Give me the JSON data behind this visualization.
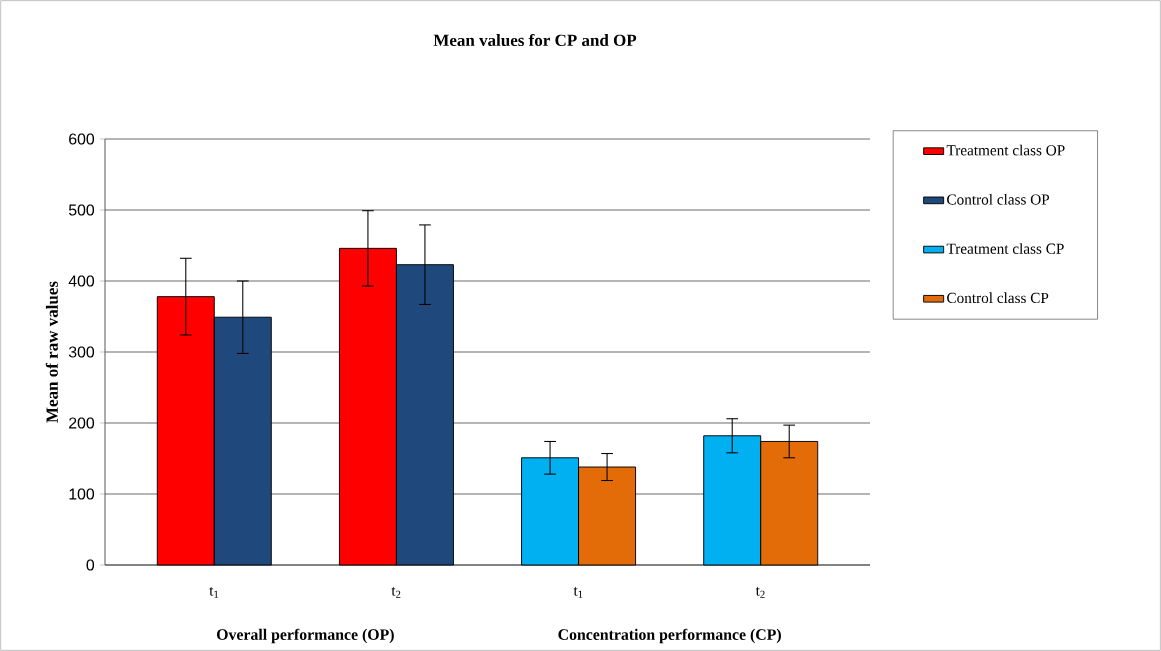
{
  "chart_data": {
    "type": "bar",
    "title": "Mean values for CP and OP",
    "ylabel": "Mean of raw values",
    "categories": [
      "t$_{1}$",
      "t$_{2}$",
      "t$_{1}$",
      "t$_{2}$"
    ],
    "series": [
      {
        "name": "Treatment class OP",
        "color": "#ff0000",
        "values": [
          378,
          446,
          null,
          null
        ],
        "errors": [
          54,
          53,
          null,
          null
        ]
      },
      {
        "name": "Control class OP",
        "color": "#1f497d",
        "values": [
          349,
          423,
          null,
          null
        ],
        "errors": [
          51,
          56,
          null,
          null
        ]
      },
      {
        "name": "Treatment class CP",
        "color": "#00b0f0",
        "values": [
          null,
          null,
          151,
          182
        ],
        "errors": [
          null,
          null,
          23,
          24
        ]
      },
      {
        "name": "Control class CP",
        "color": "#e36c09",
        "values": [
          null,
          null,
          138,
          174
        ],
        "errors": [
          null,
          null,
          19,
          23
        ]
      }
    ],
    "ylim": [
      0,
      600
    ],
    "yticks": [
      0,
      100,
      200,
      300,
      400,
      500,
      600
    ],
    "grid": "y",
    "legend": "right",
    "annotations": [
      "Overall performance (OP)",
      "Concentration performance (CP)"
    ]
  }
}
